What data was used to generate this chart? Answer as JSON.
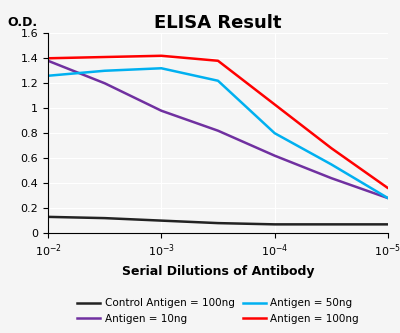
{
  "title": "ELISA Result",
  "ylabel": "O.D.",
  "xlabel": "Serial Dilutions of Antibody",
  "xlim_log": [
    -2,
    -5
  ],
  "ylim": [
    0,
    1.6
  ],
  "yticks": [
    0,
    0.2,
    0.4,
    0.6,
    0.8,
    1.0,
    1.2,
    1.4,
    1.6
  ],
  "xtick_positions": [
    -2,
    -3,
    -4,
    -5
  ],
  "xtick_labels": [
    "10^-2",
    "10^-3",
    "10^-4",
    "10^-5"
  ],
  "background_color": "#f0f0f0",
  "lines": {
    "control": {
      "color": "#222222",
      "label": "Control Antigen = 100ng",
      "x": [
        -2,
        -2.5,
        -3,
        -3.5,
        -4,
        -4.5,
        -5
      ],
      "y": [
        0.13,
        0.12,
        0.1,
        0.08,
        0.07,
        0.07,
        0.07
      ]
    },
    "antigen_10ng": {
      "color": "#7030a0",
      "label": "Antigen = 10ng",
      "x": [
        -2,
        -2.5,
        -3,
        -3.5,
        -4,
        -4.5,
        -5
      ],
      "y": [
        1.38,
        1.2,
        0.98,
        0.82,
        0.62,
        0.44,
        0.28
      ]
    },
    "antigen_50ng": {
      "color": "#00b0f0",
      "label": "Antigen = 50ng",
      "x": [
        -2,
        -2.5,
        -3,
        -3.5,
        -4,
        -4.5,
        -5
      ],
      "y": [
        1.26,
        1.3,
        1.32,
        1.22,
        0.8,
        0.55,
        0.28
      ]
    },
    "antigen_100ng": {
      "color": "#ff0000",
      "label": "Antigen = 100ng",
      "x": [
        -2,
        -2.5,
        -3,
        -3.5,
        -4,
        -4.5,
        -5
      ],
      "y": [
        1.4,
        1.41,
        1.42,
        1.38,
        1.03,
        0.68,
        0.36
      ]
    }
  },
  "legend_items": [
    {
      "label": "Control Antigen = 100ng",
      "color": "#222222"
    },
    {
      "label": "Antigen = 10ng",
      "color": "#7030a0"
    },
    {
      "label": "Antigen = 50ng",
      "color": "#00b0f0"
    },
    {
      "label": "Antigen = 100ng",
      "color": "#ff0000"
    }
  ],
  "title_fontsize": 13,
  "axis_label_fontsize": 9,
  "tick_fontsize": 8,
  "legend_fontsize": 7.5,
  "linewidth": 1.8
}
